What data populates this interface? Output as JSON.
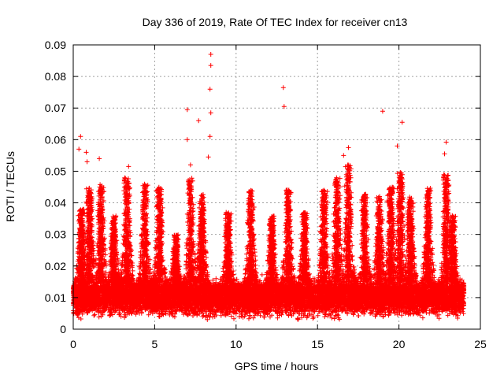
{
  "chart_data": {
    "type": "scatter",
    "title": "Day 336 of 2019, Rate Of TEC Index for receiver cn13",
    "xlabel": "GPS time / hours",
    "ylabel": "ROTI / TECUs",
    "xlim": [
      0,
      25
    ],
    "ylim": [
      0,
      0.09
    ],
    "xticks": [
      0,
      5,
      10,
      15,
      20,
      25
    ],
    "xtick_labels": [
      "0",
      "5",
      "10",
      "15",
      "20",
      "25"
    ],
    "yticks": [
      0,
      0.01,
      0.02,
      0.03,
      0.04,
      0.05,
      0.06,
      0.07,
      0.08,
      0.09
    ],
    "ytick_labels": [
      "0",
      "0.01",
      "0.02",
      "0.03",
      "0.04",
      "0.05",
      "0.06",
      "0.07",
      "0.08",
      "0.09"
    ],
    "grid": true,
    "marker": "+",
    "color": "#ff0000",
    "series": [
      {
        "name": "ROTI",
        "outliers": [
          {
            "x": 0.45,
            "y": 0.061
          },
          {
            "x": 0.35,
            "y": 0.057
          },
          {
            "x": 0.8,
            "y": 0.056
          },
          {
            "x": 0.85,
            "y": 0.053
          },
          {
            "x": 1.6,
            "y": 0.054
          },
          {
            "x": 7.0,
            "y": 0.0695
          },
          {
            "x": 7.0,
            "y": 0.06
          },
          {
            "x": 7.7,
            "y": 0.066
          },
          {
            "x": 8.45,
            "y": 0.087
          },
          {
            "x": 8.45,
            "y": 0.0835
          },
          {
            "x": 8.4,
            "y": 0.076
          },
          {
            "x": 8.45,
            "y": 0.0685
          },
          {
            "x": 8.4,
            "y": 0.061
          },
          {
            "x": 8.3,
            "y": 0.0545
          },
          {
            "x": 12.9,
            "y": 0.0765
          },
          {
            "x": 12.95,
            "y": 0.0705
          },
          {
            "x": 19.0,
            "y": 0.069
          },
          {
            "x": 20.2,
            "y": 0.0655
          },
          {
            "x": 19.9,
            "y": 0.058
          },
          {
            "x": 22.9,
            "y": 0.0592
          },
          {
            "x": 22.8,
            "y": 0.0555
          },
          {
            "x": 16.9,
            "y": 0.0575
          },
          {
            "x": 16.6,
            "y": 0.055
          },
          {
            "x": 3.4,
            "y": 0.0515
          },
          {
            "x": 7.2,
            "y": 0.052
          }
        ],
        "peaks": [
          {
            "x": 0.5,
            "y": 0.038
          },
          {
            "x": 1.0,
            "y": 0.045
          },
          {
            "x": 1.7,
            "y": 0.046
          },
          {
            "x": 2.5,
            "y": 0.036
          },
          {
            "x": 3.3,
            "y": 0.048
          },
          {
            "x": 4.4,
            "y": 0.046
          },
          {
            "x": 5.3,
            "y": 0.045
          },
          {
            "x": 6.3,
            "y": 0.03
          },
          {
            "x": 7.2,
            "y": 0.048
          },
          {
            "x": 7.9,
            "y": 0.043
          },
          {
            "x": 9.5,
            "y": 0.037
          },
          {
            "x": 10.9,
            "y": 0.044
          },
          {
            "x": 12.2,
            "y": 0.036
          },
          {
            "x": 13.2,
            "y": 0.045
          },
          {
            "x": 14.2,
            "y": 0.037
          },
          {
            "x": 15.4,
            "y": 0.044
          },
          {
            "x": 16.2,
            "y": 0.048
          },
          {
            "x": 16.9,
            "y": 0.052
          },
          {
            "x": 17.9,
            "y": 0.043
          },
          {
            "x": 18.8,
            "y": 0.042
          },
          {
            "x": 19.5,
            "y": 0.045
          },
          {
            "x": 20.1,
            "y": 0.05
          },
          {
            "x": 20.7,
            "y": 0.042
          },
          {
            "x": 21.8,
            "y": 0.045
          },
          {
            "x": 22.9,
            "y": 0.049
          },
          {
            "x": 23.3,
            "y": 0.036
          }
        ],
        "baseline": {
          "x_start": 0,
          "x_end": 24,
          "y_typical": 0.01,
          "y_min": 0.003,
          "y_dense_max": 0.02
        }
      }
    ]
  }
}
